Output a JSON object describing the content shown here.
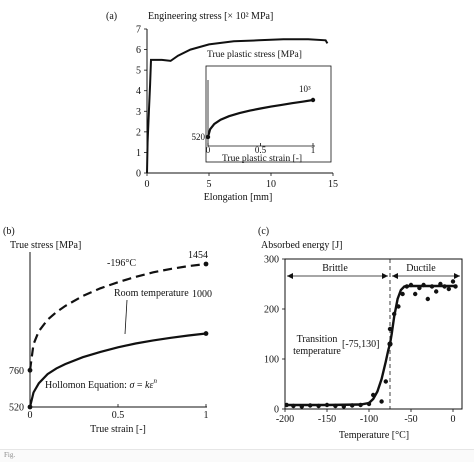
{
  "figure": {
    "caption_fragment": "Fig."
  },
  "chart_data": [
    {
      "panel": "(a)",
      "type": "line",
      "title": "",
      "ylabel": "Engineering stress [× 10² MPa]",
      "xlabel": "Elongation [mm]",
      "xlim": [
        0,
        15
      ],
      "ylim": [
        0,
        7
      ],
      "xticks": [
        "0",
        "5",
        "10",
        "15"
      ],
      "yticks": [
        "0",
        "1",
        "2",
        "3",
        "4",
        "5",
        "6",
        "7"
      ],
      "series": [
        {
          "x": [
            0,
            0.05,
            0.15,
            0.25,
            0.32,
            0.36,
            0.45,
            1.2,
            1.9,
            2.5,
            3.5,
            5,
            7,
            9,
            11,
            13,
            14.4,
            14.55
          ],
          "y": [
            0,
            1.5,
            3.0,
            4.3,
            5.5,
            5.5,
            5.5,
            5.5,
            5.45,
            5.7,
            6.0,
            6.25,
            6.4,
            6.45,
            6.5,
            6.5,
            6.45,
            6.3
          ]
        }
      ],
      "inset": {
        "title": "True plastic stress [MPa]",
        "xlabel": "True plastic strain [-]",
        "xlim": [
          0,
          1
        ],
        "xticks": [
          "0",
          "0.5",
          "1"
        ],
        "start_label": "520",
        "end_label": "10³",
        "series": [
          {
            "x": [
              0,
              0.02,
              0.06,
              0.12,
              0.2,
              0.3,
              0.4,
              0.5,
              0.6,
              0.7,
              0.8,
              0.9,
              1.0
            ],
            "y": [
              520,
              620,
              690,
              745,
              790,
              830,
              862,
              890,
              915,
              937,
              958,
              978,
              1000
            ]
          }
        ]
      }
    },
    {
      "panel": "(b)",
      "type": "line",
      "title": "",
      "ylabel": "True stress [MPa]",
      "xlabel": "True strain [-]",
      "xlim": [
        0,
        1
      ],
      "ylim": [
        520,
        1454
      ],
      "xticks": [
        "0",
        "0.5",
        "1"
      ],
      "yticks": [
        "520",
        "760"
      ],
      "annotations": {
        "cold_label": "-196°C",
        "room_label": "Room temperature",
        "cold_end": "1454",
        "room_end": "1000",
        "equation_prefix": "Hollomon Equation: ",
        "equation_var1": "σ",
        "equation_eq": " = ",
        "equation_k": "k",
        "equation_e": "ε",
        "equation_n": "n"
      },
      "series": [
        {
          "style": "dashed",
          "x": [
            0,
            0.02,
            0.05,
            0.1,
            0.15,
            0.2,
            0.3,
            0.4,
            0.5,
            0.6,
            0.7,
            0.8,
            0.9,
            1.0
          ],
          "y": [
            760,
            930,
            1015,
            1090,
            1140,
            1180,
            1245,
            1295,
            1335,
            1370,
            1400,
            1422,
            1440,
            1454
          ]
        },
        {
          "style": "solid",
          "x": [
            0,
            0.02,
            0.05,
            0.1,
            0.15,
            0.2,
            0.3,
            0.4,
            0.5,
            0.6,
            0.7,
            0.8,
            0.9,
            1.0
          ],
          "y": [
            520,
            615,
            675,
            735,
            772,
            800,
            845,
            880,
            910,
            935,
            955,
            972,
            987,
            1000
          ]
        }
      ]
    },
    {
      "panel": "(c)",
      "type": "scatter",
      "title": "",
      "ylabel": "Absorbed energy [J]",
      "xlabel": "Temperature [°C]",
      "xlim": [
        -200,
        10
      ],
      "ylim": [
        0,
        300
      ],
      "xticks": [
        "-200",
        "-150",
        "-100",
        "-50",
        "0"
      ],
      "yticks": [
        "0",
        "100",
        "200",
        "300"
      ],
      "regions": {
        "brittle": "Brittle",
        "ductile": "Ductile"
      },
      "transition": {
        "label_line1": "Transition",
        "label_line2": "temperature",
        "value_label": "[-75,130]",
        "x": -75,
        "y": 130
      },
      "points": {
        "x": [
          -198,
          -190,
          -180,
          -170,
          -160,
          -150,
          -140,
          -130,
          -120,
          -110,
          -100,
          -95,
          -85,
          -80,
          -75,
          -70,
          -65,
          -60,
          -55,
          -50,
          -45,
          -40,
          -35,
          -30,
          -25,
          -20,
          -15,
          -10,
          -5,
          0,
          3
        ],
        "y": [
          8,
          6,
          5,
          7,
          6,
          8,
          6,
          5,
          7,
          8,
          10,
          28,
          15,
          55,
          160,
          190,
          205,
          230,
          245,
          248,
          230,
          242,
          248,
          220,
          245,
          235,
          250,
          245,
          240,
          255,
          245
        ]
      },
      "fit": {
        "x": [
          -200,
          -150,
          -110,
          -100,
          -95,
          -90,
          -85,
          -80,
          -77,
          -75,
          -73,
          -70,
          -66,
          -62,
          -58,
          -55,
          -50,
          -40,
          -20,
          0,
          5
        ],
        "y": [
          8,
          8,
          9,
          12,
          20,
          35,
          60,
          95,
          118,
          130,
          150,
          185,
          220,
          238,
          245,
          246,
          246,
          246,
          246,
          246,
          246
        ]
      }
    }
  ]
}
